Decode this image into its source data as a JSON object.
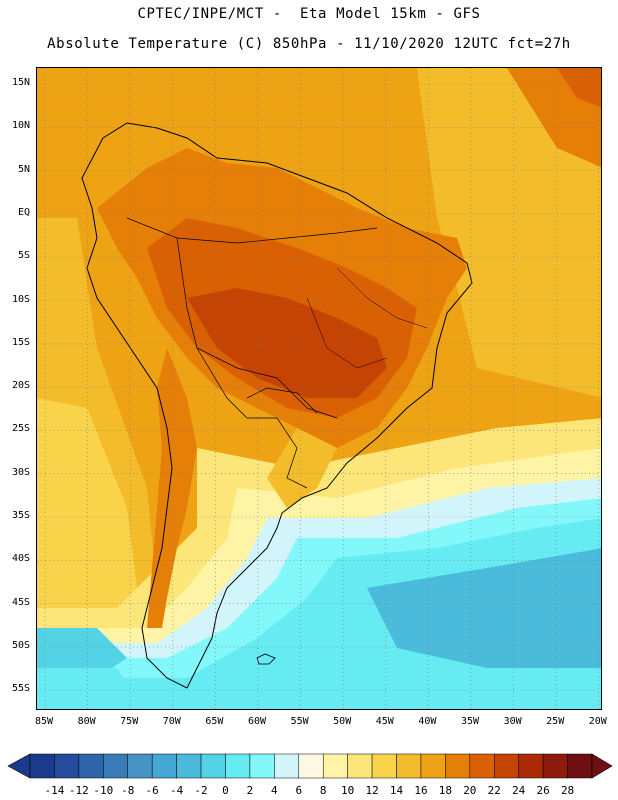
{
  "header": {
    "line1": "CPTEC/INPE/MCT -  Eta Model 15km - GFS",
    "line2": "Absolute Temperature (C) 850hPa - 11/10/2020 12UTC fct=27h"
  },
  "map": {
    "lat_labels": [
      "15N",
      "10N",
      "5N",
      "EQ",
      "5S",
      "10S",
      "15S",
      "20S",
      "25S",
      "30S",
      "35S",
      "40S",
      "45S",
      "50S",
      "55S"
    ],
    "lon_labels": [
      "85W",
      "80W",
      "75W",
      "70W",
      "65W",
      "60W",
      "55W",
      "50W",
      "45W",
      "40W",
      "35W",
      "30W",
      "25W",
      "20W"
    ],
    "lat_range": [
      15,
      -55
    ],
    "lon_range": [
      -85,
      -20
    ]
  },
  "colorbar": {
    "labels": [
      "-14",
      "-12",
      "-10",
      "-8",
      "-6",
      "-4",
      "-2",
      "0",
      "2",
      "4",
      "6",
      "8",
      "10",
      "12",
      "14",
      "16",
      "18",
      "20",
      "22",
      "24",
      "26",
      "28"
    ],
    "colors": [
      "#1c3a8c",
      "#274b9c",
      "#2f64aa",
      "#3a7cba",
      "#4693c6",
      "#45a7d4",
      "#4bbbdc",
      "#55d3e6",
      "#66ebf2",
      "#83f8fb",
      "#d2f5fb",
      "#fff8e3",
      "#fff3a6",
      "#fde679",
      "#f9d44a",
      "#f3bc2b",
      "#eda313",
      "#e67f07",
      "#d96103",
      "#c64403",
      "#aa2a06",
      "#8d1a0c",
      "#6e0f14"
    ]
  }
}
